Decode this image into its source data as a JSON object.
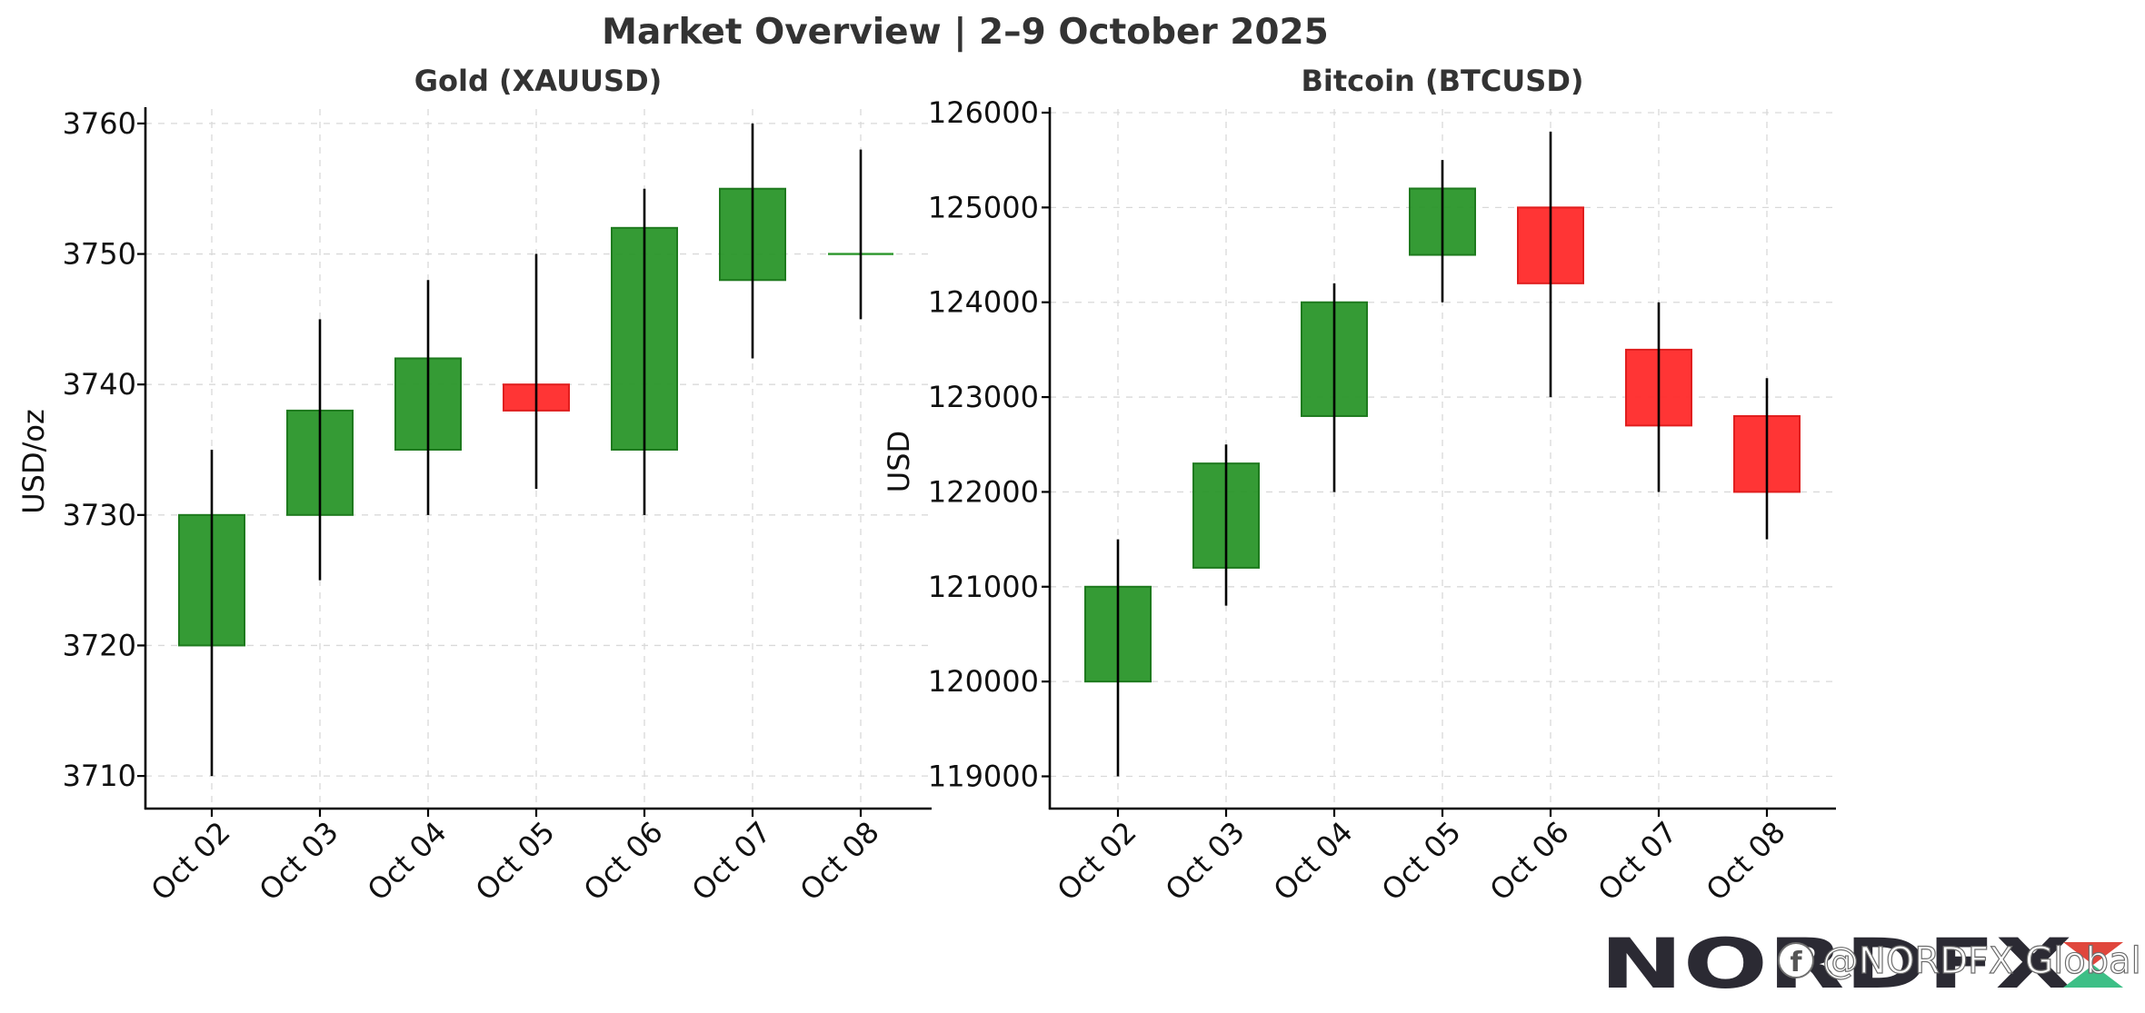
{
  "title": "Market Overview | 2–9 October 2025",
  "colors": {
    "up": "#2a962a",
    "down": "#ff2a2a",
    "up_border": "#1e7a1e",
    "down_border": "#e01e1e",
    "text": "#333333",
    "grid": "#d9d9d9"
  },
  "watermark": {
    "brand": "NORDFX",
    "handle": "@NORDFX Global",
    "icon": "facebook-icon"
  },
  "chart_data": [
    {
      "type": "candlestick",
      "title": "Gold (XAUUSD)",
      "xlabel": "",
      "ylabel": "USD/oz",
      "categories": [
        "Oct 02",
        "Oct 03",
        "Oct 04",
        "Oct 05",
        "Oct 06",
        "Oct 07",
        "Oct 08"
      ],
      "ylim": [
        3707.5,
        3762.5
      ],
      "yticks": [
        3710,
        3720,
        3730,
        3740,
        3750,
        3760
      ],
      "ytick_labels": [
        "3710",
        "3720",
        "3730",
        "3740",
        "3750",
        "3760"
      ],
      "grid": true,
      "candles": [
        {
          "open": 3720,
          "high": 3735,
          "low": 3710,
          "close": 3730
        },
        {
          "open": 3730,
          "high": 3745,
          "low": 3725,
          "close": 3738
        },
        {
          "open": 3735,
          "high": 3748,
          "low": 3730,
          "close": 3742
        },
        {
          "open": 3740,
          "high": 3750,
          "low": 3732,
          "close": 3738
        },
        {
          "open": 3735,
          "high": 3755,
          "low": 3730,
          "close": 3752
        },
        {
          "open": 3748,
          "high": 3760,
          "low": 3742,
          "close": 3755
        },
        {
          "open": 3750,
          "high": 3758,
          "low": 3745,
          "close": 3750
        }
      ]
    },
    {
      "type": "candlestick",
      "title": "Bitcoin (BTCUSD)",
      "xlabel": "",
      "ylabel": "USD",
      "categories": [
        "Oct 02",
        "Oct 03",
        "Oct 04",
        "Oct 05",
        "Oct 06",
        "Oct 07",
        "Oct 08"
      ],
      "ylim": [
        118660,
        126230
      ],
      "yticks": [
        119000,
        120000,
        121000,
        122000,
        123000,
        124000,
        125000,
        126000
      ],
      "ytick_labels": [
        "119000",
        "120000",
        "121000",
        "122000",
        "123000",
        "124000",
        "125000",
        "126000"
      ],
      "grid": true,
      "candles": [
        {
          "open": 120000,
          "high": 121500,
          "low": 119000,
          "close": 121000
        },
        {
          "open": 121200,
          "high": 122500,
          "low": 120800,
          "close": 122300
        },
        {
          "open": 122800,
          "high": 124200,
          "low": 122000,
          "close": 124000
        },
        {
          "open": 124500,
          "high": 125500,
          "low": 124000,
          "close": 125200
        },
        {
          "open": 125000,
          "high": 125800,
          "low": 123000,
          "close": 124200
        },
        {
          "open": 123500,
          "high": 124000,
          "low": 122000,
          "close": 122700
        },
        {
          "open": 122800,
          "high": 123200,
          "low": 121500,
          "close": 122000
        }
      ]
    }
  ]
}
